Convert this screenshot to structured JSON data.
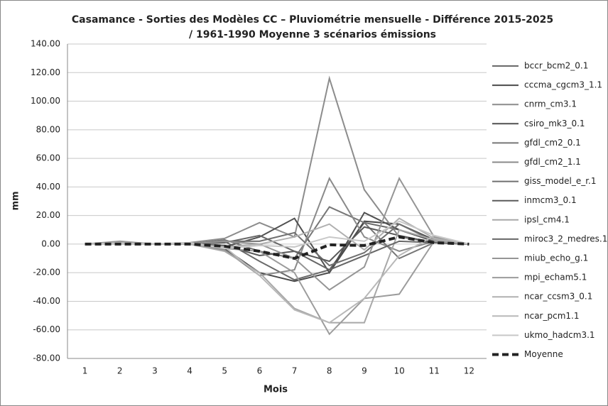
{
  "chart_data": {
    "type": "line",
    "title": [
      "Casamance - Sorties des Modèles CC – Pluviométrie mensuelle - Différence 2015-2025",
      "/ 1961-1990 Moyenne 3 scénarios émissions"
    ],
    "x_label": "Mois",
    "y_label": "mm",
    "categories": [
      1,
      2,
      3,
      4,
      5,
      6,
      7,
      8,
      9,
      10,
      11,
      12
    ],
    "ylim": [
      -80,
      140
    ],
    "yticks": [
      {
        "value": -80,
        "label": "-80.00"
      },
      {
        "value": -60,
        "label": "-60.00"
      },
      {
        "value": -40,
        "label": "-40.00"
      },
      {
        "value": -20,
        "label": "-20.00"
      },
      {
        "value": 0,
        "label": "0.00"
      },
      {
        "value": 20,
        "label": "20.00"
      },
      {
        "value": 40,
        "label": "40.00"
      },
      {
        "value": 60,
        "label": "60.00"
      },
      {
        "value": 80,
        "label": "80.00"
      },
      {
        "value": 100,
        "label": "100.00"
      },
      {
        "value": 120,
        "label": "120.00"
      },
      {
        "value": 140,
        "label": "140.00"
      }
    ],
    "grid": true,
    "legend": "right",
    "series": [
      {
        "name": "bccr_bcm2_0.1",
        "color": "#6a6a6a",
        "values": [
          0,
          0,
          0,
          0,
          2,
          -12,
          -25,
          -18,
          15,
          10,
          2,
          0
        ]
      },
      {
        "name": "cccma_cgcm3_1.1",
        "color": "#4a4a4a",
        "values": [
          0,
          0,
          0,
          0,
          -3,
          -20,
          -26,
          -20,
          16,
          14,
          3,
          0
        ]
      },
      {
        "name": "cnrm_cm3.1",
        "color": "#8c8c8c",
        "values": [
          0,
          1,
          0,
          1,
          4,
          15,
          5,
          116,
          38,
          5,
          1,
          0
        ]
      },
      {
        "name": "csiro_mk3_0.1",
        "color": "#505050",
        "values": [
          0,
          0,
          0,
          0,
          -2,
          5,
          18,
          -20,
          22,
          10,
          2,
          0
        ]
      },
      {
        "name": "gfdl_cm2_0.1",
        "color": "#777777",
        "values": [
          0,
          0,
          0,
          0,
          3,
          -5,
          -10,
          26,
          15,
          -10,
          1,
          0
        ]
      },
      {
        "name": "gfdl_cm2_1.1",
        "color": "#8a8a8a",
        "values": [
          0,
          0,
          0,
          0,
          -4,
          -22,
          -18,
          46,
          5,
          -5,
          2,
          0
        ]
      },
      {
        "name": "giss_model_e_r.1",
        "color": "#707070",
        "values": [
          0,
          1,
          0,
          0,
          2,
          2,
          8,
          -15,
          -6,
          14,
          2,
          0
        ]
      },
      {
        "name": "inmcm3_0.1",
        "color": "#5a5a5a",
        "values": [
          0,
          0,
          0,
          0,
          -1,
          -8,
          -5,
          -12,
          12,
          6,
          1,
          0
        ]
      },
      {
        "name": "ipsl_cm4.1",
        "color": "#a8a8a8",
        "values": [
          0,
          0,
          0,
          0,
          -5,
          -20,
          -45,
          -55,
          -55,
          10,
          3,
          0
        ]
      },
      {
        "name": "miroc3_2_medres.1",
        "color": "#666666",
        "values": [
          0,
          0,
          0,
          0,
          1,
          6,
          -5,
          -18,
          -8,
          2,
          1,
          0
        ]
      },
      {
        "name": "miub_echo_g.1",
        "color": "#959595",
        "values": [
          0,
          2,
          0,
          0,
          2,
          0,
          -10,
          -32,
          -16,
          46,
          5,
          0
        ]
      },
      {
        "name": "mpi_echam5.1",
        "color": "#9c9c9c",
        "values": [
          0,
          0,
          0,
          0,
          -3,
          -5,
          -20,
          -63,
          -38,
          -35,
          2,
          0
        ]
      },
      {
        "name": "ncar_ccsm3_0.1",
        "color": "#b0b0b0",
        "values": [
          0,
          0,
          0,
          0,
          -2,
          0,
          5,
          14,
          -4,
          18,
          4,
          0
        ]
      },
      {
        "name": "ncar_pcm1.1",
        "color": "#b8b8b8",
        "values": [
          0,
          1,
          0,
          0,
          -2,
          -22,
          -46,
          -55,
          -38,
          -8,
          6,
          0
        ]
      },
      {
        "name": "ukmo_hadcm3.1",
        "color": "#c8c8c8",
        "values": [
          0,
          0,
          0,
          1,
          -3,
          -1,
          -2,
          5,
          2,
          16,
          6,
          0
        ]
      },
      {
        "name": "Moyenne",
        "color": "#222222",
        "dashed": true,
        "values": [
          0,
          0,
          0,
          0,
          -1.5,
          -5,
          -10,
          -0.5,
          -1,
          5,
          1,
          0
        ]
      }
    ]
  }
}
